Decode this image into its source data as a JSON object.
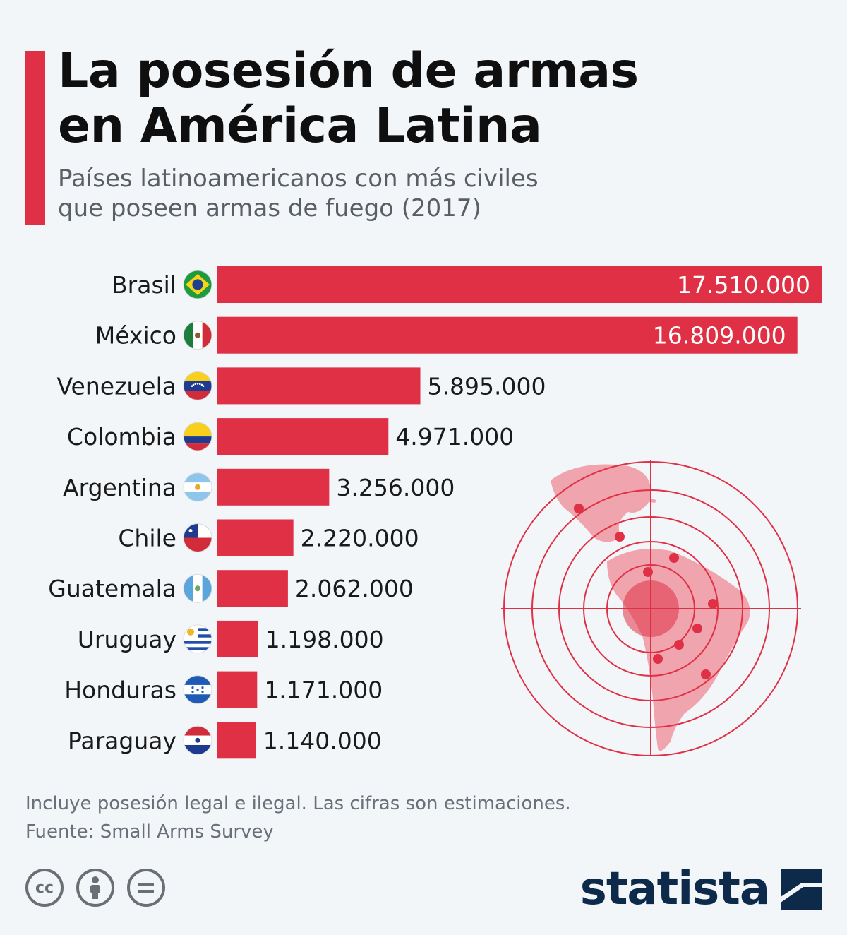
{
  "header": {
    "title_line1": "La posesión de armas",
    "title_line2": "en América Latina",
    "subtitle_line1": "Países latinoamericanos con más civiles",
    "subtitle_line2": "que poseen armas de fuego (2017)"
  },
  "colors": {
    "accent": "#e03046",
    "title": "#0f0f0f",
    "subtitle": "#5a5f66",
    "background": "#f3f6f9",
    "brand": "#0e2a4a",
    "map_fill": "#f0a4ae",
    "target_stroke": "#e03046"
  },
  "chart_data": {
    "type": "bar",
    "orientation": "horizontal",
    "categories": [
      "Brasil",
      "México",
      "Venezuela",
      "Colombia",
      "Argentina",
      "Chile",
      "Guatemala",
      "Uruguay",
      "Honduras",
      "Paraguay"
    ],
    "values": [
      17510000,
      16809000,
      5895000,
      4971000,
      3256000,
      2220000,
      2062000,
      1198000,
      1171000,
      1140000
    ],
    "value_labels": [
      "17.510.000",
      "16.809.000",
      "5.895.000",
      "4.971.000",
      "3.256.000",
      "2.220.000",
      "2.062.000",
      "1.198.000",
      "1.171.000",
      "1.140.000"
    ],
    "flags": [
      "brazil-flag-icon",
      "mexico-flag-icon",
      "venezuela-flag-icon",
      "colombia-flag-icon",
      "argentina-flag-icon",
      "chile-flag-icon",
      "guatemala-flag-icon",
      "uruguay-flag-icon",
      "honduras-flag-icon",
      "paraguay-flag-icon"
    ],
    "xlim": [
      0,
      17510000
    ],
    "grid": false,
    "legend": "none",
    "bar_color": "#e03046"
  },
  "illustration": {
    "icon": "latin-america-target-map-icon"
  },
  "footer": {
    "note": "Incluye posesión legal e ilegal. Las cifras son estimaciones.",
    "source": "Fuente: Small Arms Survey",
    "license_icons": [
      "cc-icon",
      "attribution-icon",
      "no-derivatives-icon"
    ],
    "brand": "statista"
  }
}
